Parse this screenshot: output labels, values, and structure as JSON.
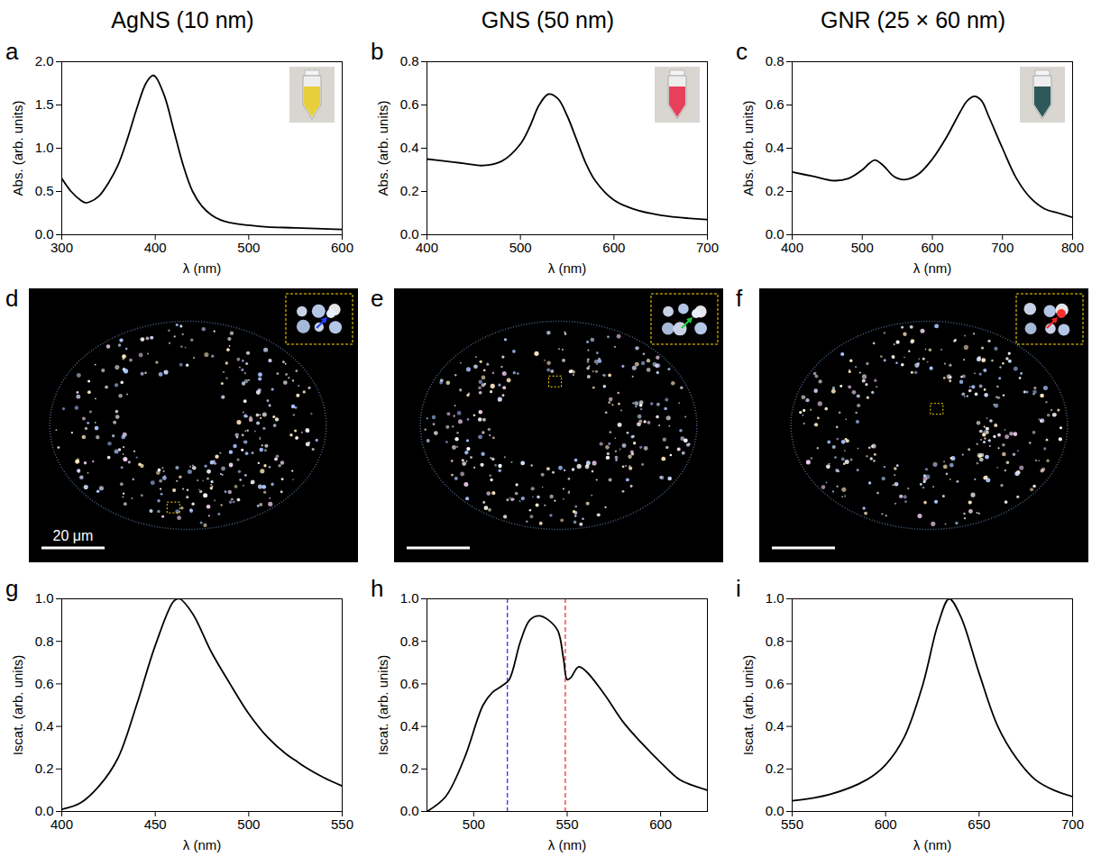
{
  "chart_data": [
    {
      "panel": "a",
      "type": "line",
      "title": "AgNS (10 nm)",
      "x_label": "λ (nm)",
      "y_label": "Abs. (arb. units)",
      "color": "#000000",
      "x": [
        300,
        310,
        320,
        325,
        330,
        340,
        350,
        360,
        370,
        380,
        390,
        397,
        400,
        410,
        420,
        430,
        440,
        450,
        460,
        470,
        480,
        500,
        520,
        550,
        600
      ],
      "values": [
        0.65,
        0.5,
        0.4,
        0.37,
        0.38,
        0.45,
        0.6,
        0.8,
        1.1,
        1.45,
        1.75,
        1.84,
        1.83,
        1.6,
        1.2,
        0.8,
        0.5,
        0.33,
        0.23,
        0.17,
        0.14,
        0.11,
        0.09,
        0.08,
        0.06
      ],
      "xlim": [
        300,
        600
      ],
      "ylim": [
        0,
        2
      ],
      "xticks": [
        300,
        400,
        500,
        600
      ],
      "yticks": [
        {
          "value": 0,
          "label": "0.0"
        },
        0.5,
        {
          "value": 1,
          "label": "1.0"
        },
        1.5,
        {
          "value": 2,
          "label": "2.0"
        }
      ]
    },
    {
      "panel": "b",
      "type": "line",
      "title": "GNS (50 nm)",
      "x_label": "λ (nm)",
      "y_label": "Abs. (arb. units)",
      "color": "#000000",
      "x": [
        400,
        420,
        440,
        460,
        480,
        500,
        510,
        520,
        530,
        540,
        550,
        560,
        570,
        580,
        600,
        620,
        650,
        700
      ],
      "values": [
        0.35,
        0.34,
        0.33,
        0.32,
        0.34,
        0.42,
        0.5,
        0.6,
        0.65,
        0.63,
        0.55,
        0.44,
        0.33,
        0.25,
        0.16,
        0.12,
        0.09,
        0.07
      ],
      "xlim": [
        400,
        700
      ],
      "ylim": [
        0,
        0.8
      ],
      "xticks": [
        400,
        500,
        600,
        700
      ],
      "yticks": [
        {
          "value": 0,
          "label": "0.0"
        },
        0.2,
        0.4,
        0.6,
        0.8
      ]
    },
    {
      "panel": "c",
      "type": "line",
      "title": "GNR (25 × 60 nm)",
      "x_label": "λ (nm)",
      "y_label": "Abs. (arb. units)",
      "color": "#000000",
      "x": [
        400,
        430,
        460,
        480,
        500,
        510,
        518,
        530,
        545,
        560,
        580,
        600,
        620,
        640,
        650,
        660,
        670,
        680,
        700,
        720,
        740,
        760,
        780,
        800
      ],
      "values": [
        0.29,
        0.27,
        0.25,
        0.26,
        0.3,
        0.33,
        0.345,
        0.32,
        0.27,
        0.255,
        0.28,
        0.35,
        0.45,
        0.57,
        0.62,
        0.64,
        0.62,
        0.55,
        0.4,
        0.26,
        0.17,
        0.12,
        0.1,
        0.08
      ],
      "xlim": [
        400,
        800
      ],
      "ylim": [
        0,
        0.8
      ],
      "xticks": [
        400,
        500,
        600,
        700,
        800
      ],
      "yticks": [
        {
          "value": 0,
          "label": "0.0"
        },
        0.2,
        0.4,
        0.6,
        0.8
      ]
    },
    {
      "panel": "g",
      "type": "line",
      "x_label": "λ (nm)",
      "y_label": "Iscat. (arb. units)",
      "color": "#000000",
      "x": [
        400,
        410,
        420,
        430,
        440,
        450,
        460,
        463,
        470,
        480,
        490,
        500,
        510,
        520,
        525,
        530,
        540,
        550
      ],
      "values": [
        0.01,
        0.04,
        0.12,
        0.25,
        0.5,
        0.78,
        0.99,
        1.0,
        0.93,
        0.75,
        0.6,
        0.46,
        0.35,
        0.27,
        0.24,
        0.21,
        0.16,
        0.12
      ],
      "xlim": [
        400,
        550
      ],
      "ylim": [
        0,
        1
      ],
      "xticks": [
        400,
        450,
        500,
        550
      ],
      "yticks": [
        {
          "value": 0,
          "label": "0.0"
        },
        0.2,
        0.4,
        0.6,
        0.8,
        {
          "value": 1,
          "label": "1.0"
        }
      ]
    },
    {
      "panel": "h",
      "type": "line",
      "x_label": "λ (nm)",
      "y_label": "Iscat. (arb. units)",
      "color": "#000000",
      "x": [
        475,
        485,
        495,
        505,
        510,
        515,
        519,
        525,
        530,
        535,
        540,
        545,
        548,
        550,
        552,
        556,
        560,
        570,
        580,
        590,
        600,
        610,
        618,
        625
      ],
      "values": [
        0.0,
        0.07,
        0.25,
        0.5,
        0.56,
        0.59,
        0.62,
        0.8,
        0.9,
        0.92,
        0.9,
        0.85,
        0.72,
        0.62,
        0.63,
        0.68,
        0.66,
        0.55,
        0.42,
        0.32,
        0.23,
        0.15,
        0.12,
        0.1
      ],
      "xlim": [
        475,
        625
      ],
      "ylim": [
        0,
        1
      ],
      "xticks": [
        500,
        550,
        600
      ],
      "yticks": [
        {
          "value": 0,
          "label": "0.0"
        },
        0.2,
        0.4,
        0.6,
        0.8,
        {
          "value": 1,
          "label": "1.0"
        }
      ],
      "vlines": [
        {
          "x": 518,
          "color": "#3b3bff",
          "line_style": "dashed"
        },
        {
          "x": 549,
          "color": "#ff3b3b",
          "line_style": "dashed"
        }
      ]
    },
    {
      "panel": "i",
      "type": "line",
      "x_label": "λ (nm)",
      "y_label": "Iscat. (arb. units)",
      "color": "#000000",
      "x": [
        550,
        570,
        590,
        600,
        610,
        620,
        628,
        634,
        640,
        650,
        660,
        670,
        680,
        690,
        700
      ],
      "values": [
        0.05,
        0.08,
        0.15,
        0.22,
        0.35,
        0.6,
        0.88,
        1.0,
        0.92,
        0.65,
        0.4,
        0.25,
        0.15,
        0.1,
        0.07
      ],
      "xlim": [
        550,
        700
      ],
      "ylim": [
        0,
        1
      ],
      "xticks": [
        550,
        600,
        650,
        700
      ],
      "yticks": [
        {
          "value": 0,
          "label": "0.0"
        },
        0.2,
        0.4,
        0.6,
        0.8,
        {
          "value": 1,
          "label": "1.0"
        }
      ]
    }
  ],
  "images": [
    {
      "panel": "d",
      "scale_bar": "20 μm",
      "color": "#2040ff"
    },
    {
      "panel": "e",
      "color": "#20d040"
    },
    {
      "panel": "f",
      "color": "#ff2020"
    }
  ]
}
